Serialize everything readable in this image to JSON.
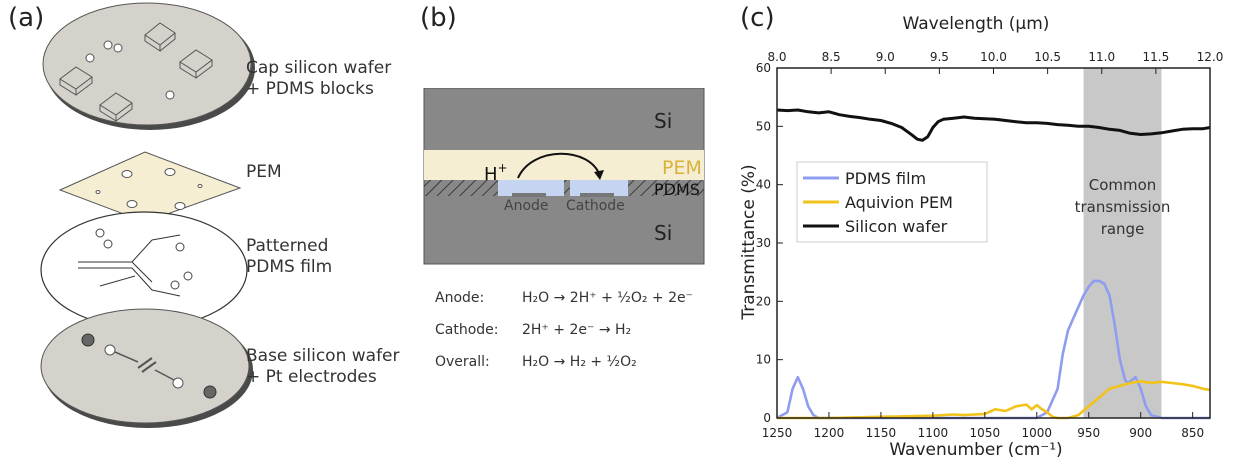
{
  "panels": {
    "a": {
      "label": "(a)",
      "layers": [
        {
          "line1": "Cap silicon wafer",
          "line2": "+ PDMS blocks"
        },
        {
          "line1": "PEM",
          "line2": ""
        },
        {
          "line1": "Patterned",
          "line2": "PDMS film"
        },
        {
          "line1": "Base silicon wafer",
          "line2": "+ Pt electrodes"
        }
      ]
    },
    "b": {
      "label": "(b)",
      "schematic": {
        "si_top": "Si",
        "si_bottom": "Si",
        "pem": "PEM",
        "pdms": "PDMS",
        "proton": "H",
        "proton_sup": "+",
        "anode": "Anode",
        "cathode": "Cathode"
      },
      "reactions": [
        {
          "name": "Anode:",
          "eq": "H₂O → 2H⁺ + ½O₂ + 2e⁻"
        },
        {
          "name": "Cathode:",
          "eq": "2H⁺ + 2e⁻ → H₂"
        },
        {
          "name": "Overall:",
          "eq": "H₂O → H₂ + ½O₂"
        }
      ]
    },
    "c": {
      "label": "(c)"
    }
  },
  "colors": {
    "pdms": "#8f9cf0",
    "pem": "#f2c31a",
    "si": "#111111",
    "band": "#c8c8c8",
    "pem_fill": "#f5eed2",
    "si_fill": "#8a8a8a"
  },
  "chart_data": {
    "type": "line",
    "xlabel": "Wavenumber (cm⁻¹)",
    "x2label": "Wavelength (μm)",
    "ylabel": "Transmittance (%)",
    "xlim": [
      1250,
      833.3
    ],
    "ylim": [
      0,
      60
    ],
    "xticks": [
      1250,
      1200,
      1150,
      1100,
      1050,
      1000,
      950,
      900,
      850
    ],
    "x2ticks": [
      "8.0",
      "8.5",
      "9.0",
      "9.5",
      "10.0",
      "10.5",
      "11.0",
      "11.5",
      "12.0"
    ],
    "yticks": [
      0,
      10,
      20,
      30,
      40,
      50,
      60
    ],
    "band": {
      "from": 955,
      "to": 880,
      "text": [
        "Common",
        "transmission",
        "range"
      ]
    },
    "legend_position": "top-left",
    "series": [
      {
        "name": "PDMS film",
        "color": "#8f9cf0",
        "x": [
          1250,
          1240,
          1235,
          1230,
          1225,
          1220,
          1215,
          1210,
          1200,
          1100,
          1000,
          990,
          980,
          975,
          970,
          965,
          960,
          955,
          950,
          945,
          940,
          935,
          930,
          925,
          920,
          915,
          912,
          905,
          900,
          895,
          890,
          880,
          870,
          850,
          833
        ],
        "y": [
          0,
          1,
          5,
          7,
          5,
          2,
          0.5,
          0,
          0,
          0,
          0,
          1,
          5,
          11,
          15,
          17,
          19,
          21,
          22.5,
          23.5,
          23.5,
          23,
          21,
          16,
          10,
          6.5,
          6,
          7,
          5,
          2,
          0.5,
          0,
          0,
          0,
          0
        ]
      },
      {
        "name": "Aquivion PEM",
        "color": "#f2c31a",
        "x": [
          1250,
          1200,
          1150,
          1100,
          1080,
          1070,
          1050,
          1040,
          1030,
          1020,
          1010,
          1005,
          1000,
          995,
          990,
          985,
          980,
          975,
          970,
          960,
          950,
          940,
          930,
          920,
          910,
          900,
          890,
          880,
          870,
          860,
          850,
          840,
          833
        ],
        "y": [
          0,
          0,
          0.2,
          0.4,
          0.6,
          0.5,
          0.7,
          1.5,
          1.2,
          2,
          2.3,
          1.5,
          2.2,
          1.5,
          1,
          0.2,
          0,
          0,
          0,
          0.5,
          2,
          3.5,
          5,
          5.5,
          6,
          6.3,
          6,
          6.2,
          6,
          5.8,
          5.5,
          5,
          4.8
        ]
      },
      {
        "name": "Silicon wafer",
        "color": "#111111",
        "x": [
          1250,
          1240,
          1230,
          1220,
          1210,
          1200,
          1190,
          1180,
          1170,
          1160,
          1150,
          1140,
          1130,
          1120,
          1115,
          1110,
          1105,
          1100,
          1095,
          1090,
          1080,
          1070,
          1060,
          1050,
          1040,
          1030,
          1020,
          1010,
          1000,
          990,
          980,
          970,
          960,
          950,
          940,
          930,
          920,
          910,
          900,
          890,
          880,
          870,
          860,
          850,
          840,
          833
        ],
        "y": [
          52.8,
          52.7,
          52.8,
          52.5,
          52.3,
          52.5,
          52.0,
          51.7,
          51.5,
          51.2,
          51.0,
          50.5,
          49.8,
          48.5,
          47.8,
          47.6,
          48.2,
          49.8,
          50.8,
          51.2,
          51.4,
          51.6,
          51.4,
          51.3,
          51.2,
          51.0,
          50.8,
          50.6,
          50.6,
          50.5,
          50.3,
          50.2,
          50.0,
          50.0,
          49.8,
          49.5,
          49.3,
          48.8,
          48.6,
          48.7,
          48.9,
          49.2,
          49.5,
          49.6,
          49.6,
          49.8
        ]
      }
    ]
  }
}
